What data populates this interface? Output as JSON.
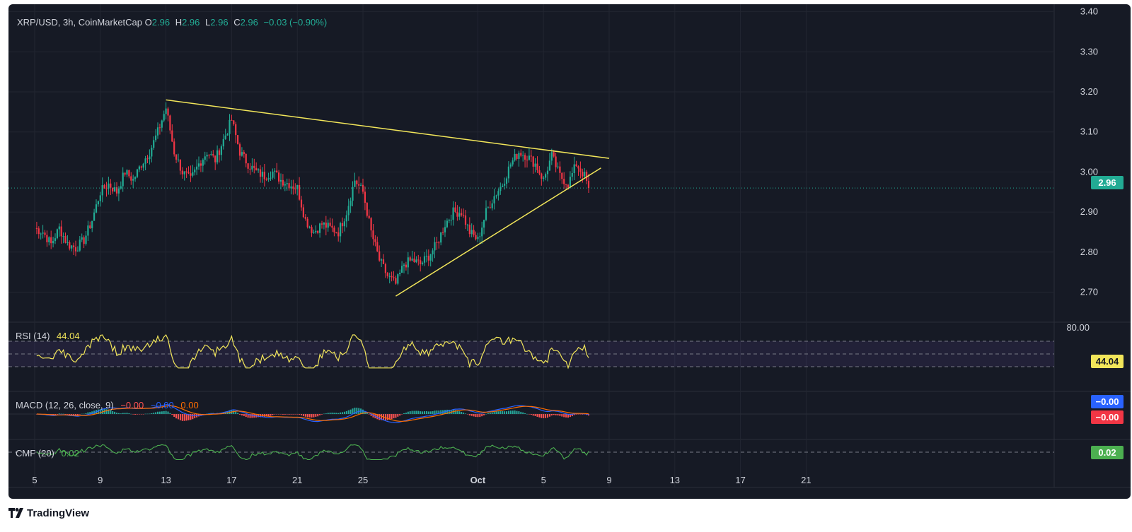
{
  "header": {
    "symbol": "XRP/USD, 3h, CoinMarketCap",
    "o_key": "O",
    "o_val": "2.96",
    "h_key": "H",
    "h_val": "2.96",
    "l_key": "L",
    "l_val": "2.96",
    "c_key": "C",
    "c_val": "2.96",
    "change": "−0.03 (−0.90%)"
  },
  "indicators": {
    "rsi": {
      "label": "RSI (14)",
      "value": "44.04",
      "axis": "80.00",
      "tag": "44.04"
    },
    "macd": {
      "label": "MACD (12, 26, close, 9)",
      "v1": "−0.00",
      "v2": "−0.00",
      "v3": "0.00",
      "tag_macd": "−0.00",
      "tag_hist": "−0.00"
    },
    "cmf": {
      "label": "CMF (20)",
      "value": "0.02",
      "tag": "0.02"
    }
  },
  "price_tag": "2.96",
  "branding": "TradingView",
  "colors": {
    "background": "#161a25",
    "up": "#22ab94",
    "down": "#f23645",
    "trendline": "#f2e65a",
    "rsi": "#f2e65a",
    "macd": "#2962ff",
    "signal": "#ff6d00",
    "cmf": "#4caf50"
  },
  "chart_data": {
    "type": "candlestick",
    "title": "XRP/USD, 3h, CoinMarketCap",
    "y_ticks": [
      "3.40",
      "3.30",
      "3.20",
      "3.10",
      "3.00",
      "2.90",
      "2.80",
      "2.70"
    ],
    "ylim": [
      2.625,
      3.41
    ],
    "x_ticks": [
      "5",
      "9",
      "13",
      "17",
      "21",
      "25",
      "Oct",
      "5",
      "9",
      "13",
      "17",
      "21"
    ],
    "x_tick_index": [
      0,
      32,
      64,
      96,
      128,
      160,
      216,
      248,
      280,
      312,
      344,
      376
    ],
    "last_price": 2.96,
    "close_path": [
      [
        0,
        2.86
      ],
      [
        4,
        2.85
      ],
      [
        8,
        2.82
      ],
      [
        12,
        2.86
      ],
      [
        16,
        2.82
      ],
      [
        20,
        2.81
      ],
      [
        24,
        2.83
      ],
      [
        28,
        2.88
      ],
      [
        32,
        2.95
      ],
      [
        36,
        2.97
      ],
      [
        40,
        2.95
      ],
      [
        44,
        3.0
      ],
      [
        48,
        2.98
      ],
      [
        52,
        3.02
      ],
      [
        56,
        3.05
      ],
      [
        60,
        3.1
      ],
      [
        64,
        3.16
      ],
      [
        68,
        3.05
      ],
      [
        72,
        3.0
      ],
      [
        76,
        2.98
      ],
      [
        80,
        3.02
      ],
      [
        84,
        3.05
      ],
      [
        88,
        3.03
      ],
      [
        92,
        3.08
      ],
      [
        96,
        3.13
      ],
      [
        100,
        3.05
      ],
      [
        104,
        3.02
      ],
      [
        108,
        3.0
      ],
      [
        112,
        2.99
      ],
      [
        116,
        3.0
      ],
      [
        120,
        2.98
      ],
      [
        124,
        2.97
      ],
      [
        128,
        2.96
      ],
      [
        132,
        2.88
      ],
      [
        136,
        2.85
      ],
      [
        140,
        2.87
      ],
      [
        144,
        2.86
      ],
      [
        148,
        2.85
      ],
      [
        152,
        2.9
      ],
      [
        156,
        2.98
      ],
      [
        160,
        2.95
      ],
      [
        164,
        2.85
      ],
      [
        168,
        2.78
      ],
      [
        172,
        2.74
      ],
      [
        176,
        2.72
      ],
      [
        180,
        2.77
      ],
      [
        184,
        2.78
      ],
      [
        188,
        2.77
      ],
      [
        192,
        2.79
      ],
      [
        196,
        2.82
      ],
      [
        200,
        2.87
      ],
      [
        204,
        2.9
      ],
      [
        208,
        2.9
      ],
      [
        212,
        2.85
      ],
      [
        216,
        2.83
      ],
      [
        220,
        2.9
      ],
      [
        224,
        2.94
      ],
      [
        228,
        2.97
      ],
      [
        232,
        3.02
      ],
      [
        236,
        3.05
      ],
      [
        240,
        3.04
      ],
      [
        244,
        3.02
      ],
      [
        248,
        2.98
      ],
      [
        252,
        3.04
      ],
      [
        256,
        2.99
      ],
      [
        260,
        2.97
      ],
      [
        264,
        3.02
      ],
      [
        268,
        2.99
      ],
      [
        270,
        2.96
      ]
    ],
    "upper_trendline": [
      [
        64,
        3.18
      ],
      [
        280,
        3.034
      ]
    ],
    "lower_trendline": [
      [
        176,
        2.69
      ],
      [
        276,
        3.01
      ]
    ],
    "rsi": {
      "levels": [
        70,
        50,
        30
      ],
      "last": 44.04
    },
    "macd": {
      "last_macd": -0.0,
      "last_signal": -0.0,
      "last_hist": 0.0
    },
    "cmf": {
      "last": 0.02
    }
  }
}
